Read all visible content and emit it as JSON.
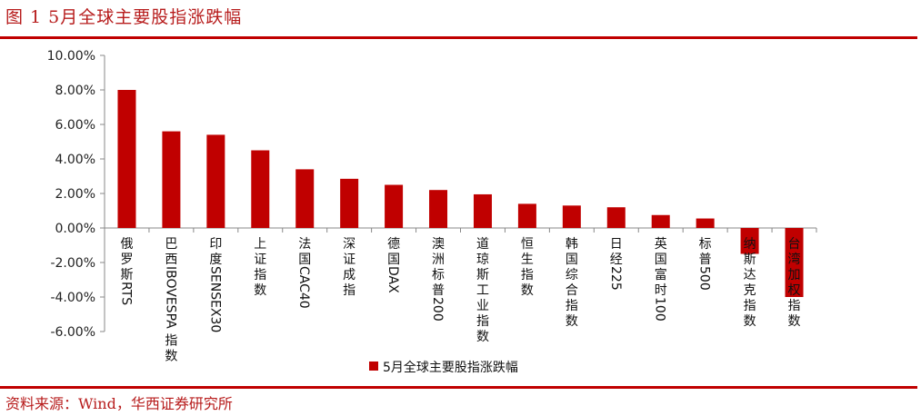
{
  "header": {
    "title": "图 1 5月全球主要股指涨跌幅"
  },
  "footer": {
    "source": "资料来源：Wind，华西证券研究所"
  },
  "colors": {
    "bar": "#C00000",
    "rule": "#C00000",
    "title": "#B71C1C"
  },
  "chart_data": {
    "type": "bar",
    "title": "",
    "xlabel": "",
    "ylabel": "",
    "ylim": [
      -6,
      10
    ],
    "yticks": [
      "10.00%",
      "8.00%",
      "6.00%",
      "4.00%",
      "2.00%",
      "0.00%",
      "-2.00%",
      "-4.00%",
      "-6.00%"
    ],
    "ytick_values": [
      10,
      8,
      6,
      4,
      2,
      0,
      -2,
      -4,
      -6
    ],
    "legend_position": "bottom",
    "categories": [
      "俄罗斯RTS",
      "巴西IBOVESPA指数",
      "印度SENSEX30",
      "上证指数",
      "法国CAC40",
      "深证成指",
      "德国DAX",
      "澳洲标普200",
      "道琼斯工业指数",
      "恒生指数",
      "韩国综合指数",
      "日经225",
      "英国富时100",
      "标普500",
      "纳斯达克指数",
      "台湾加权指数"
    ],
    "series": [
      {
        "name": "5月全球主要股指涨跌幅",
        "values": [
          8.0,
          5.6,
          5.4,
          4.5,
          3.4,
          2.85,
          2.5,
          2.2,
          1.95,
          1.4,
          1.3,
          1.2,
          0.75,
          0.55,
          -1.5,
          -4.0
        ]
      }
    ]
  }
}
